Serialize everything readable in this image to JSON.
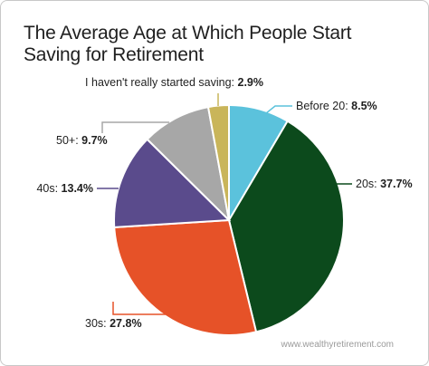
{
  "title": "The Average Age at Which People Start Saving for Retirement",
  "watermark": "www.wealthyretirement.com",
  "chart_data": {
    "type": "pie",
    "title": "The Average Age at Which People Start Saving for Retirement",
    "start_angle_deg": 0,
    "direction": "clockwise",
    "slices": [
      {
        "label": "Before 20:",
        "value": 8.5,
        "value_label": "8.5%",
        "color": "#5bc2dc"
      },
      {
        "label": "20s:",
        "value": 37.7,
        "value_label": "37.7%",
        "color": "#0c4a1c"
      },
      {
        "label": "30s:",
        "value": 27.8,
        "value_label": "27.8%",
        "color": "#e65228"
      },
      {
        "label": "40s:",
        "value": 13.4,
        "value_label": "13.4%",
        "color": "#5a4b8c"
      },
      {
        "label": "50+:",
        "value": 9.7,
        "value_label": "9.7%",
        "color": "#a7a7a7"
      },
      {
        "label": "I haven't really started saving:",
        "value": 2.9,
        "value_label": "2.9%",
        "color": "#c9b55a"
      }
    ]
  }
}
